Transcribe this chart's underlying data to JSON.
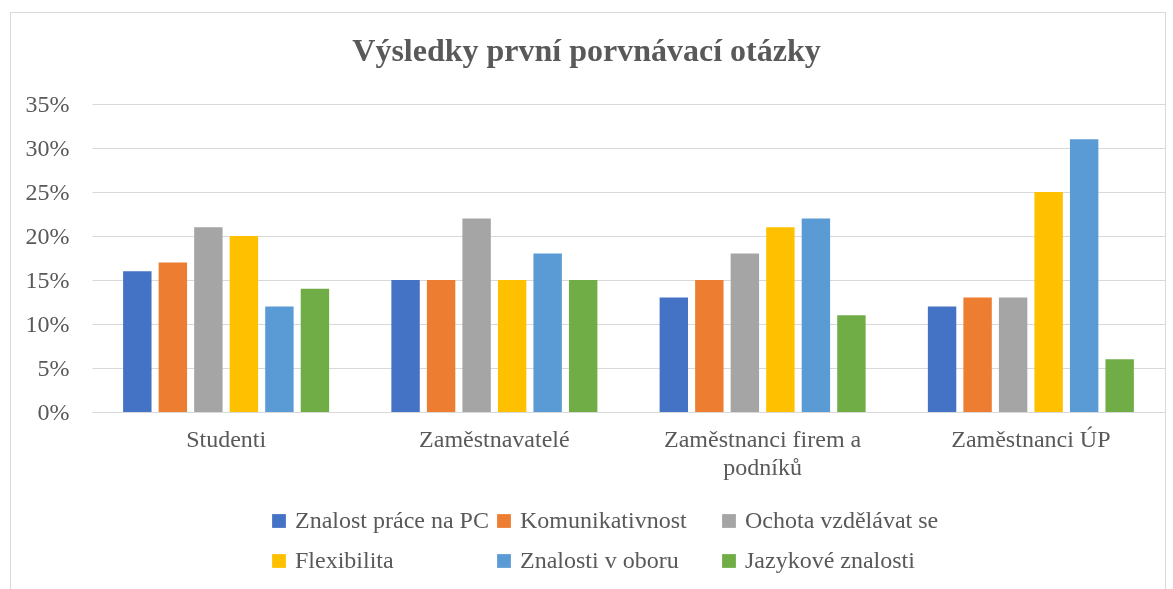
{
  "chart_data": {
    "type": "bar",
    "title": "Výsledky první porvnávací otázky",
    "categories": [
      "Studenti",
      "Zaměstnavatelé",
      "Zaměstnanci firem a podníků",
      "Zaměstnanci ÚP"
    ],
    "series": [
      {
        "name": "Znalost práce na PC",
        "color": "#4472c4",
        "values": [
          16,
          15,
          13,
          12
        ]
      },
      {
        "name": "Komunikativnost",
        "color": "#ed7d31",
        "values": [
          17,
          15,
          15,
          13
        ]
      },
      {
        "name": "Ochota vzdělávat se",
        "color": "#a5a5a5",
        "values": [
          21,
          22,
          18,
          13
        ]
      },
      {
        "name": "Flexibilita",
        "color": "#ffc000",
        "values": [
          20,
          15,
          21,
          25
        ]
      },
      {
        "name": "Znalosti v oboru",
        "color": "#5b9bd5",
        "values": [
          12,
          18,
          22,
          31
        ]
      },
      {
        "name": "Jazykové znalosti",
        "color": "#70ad47",
        "values": [
          14,
          15,
          11,
          6
        ]
      }
    ],
    "ylim": [
      0,
      35
    ],
    "yticks": [
      {
        "value": 0,
        "label": "0%"
      },
      {
        "value": 5,
        "label": "5%"
      },
      {
        "value": 10,
        "label": "10%"
      },
      {
        "value": 15,
        "label": "15%"
      },
      {
        "value": 20,
        "label": "20%"
      },
      {
        "value": 25,
        "label": "25%"
      },
      {
        "value": 30,
        "label": "30%"
      },
      {
        "value": 35,
        "label": "35%"
      }
    ],
    "grid": "y",
    "legend": "bottom"
  }
}
